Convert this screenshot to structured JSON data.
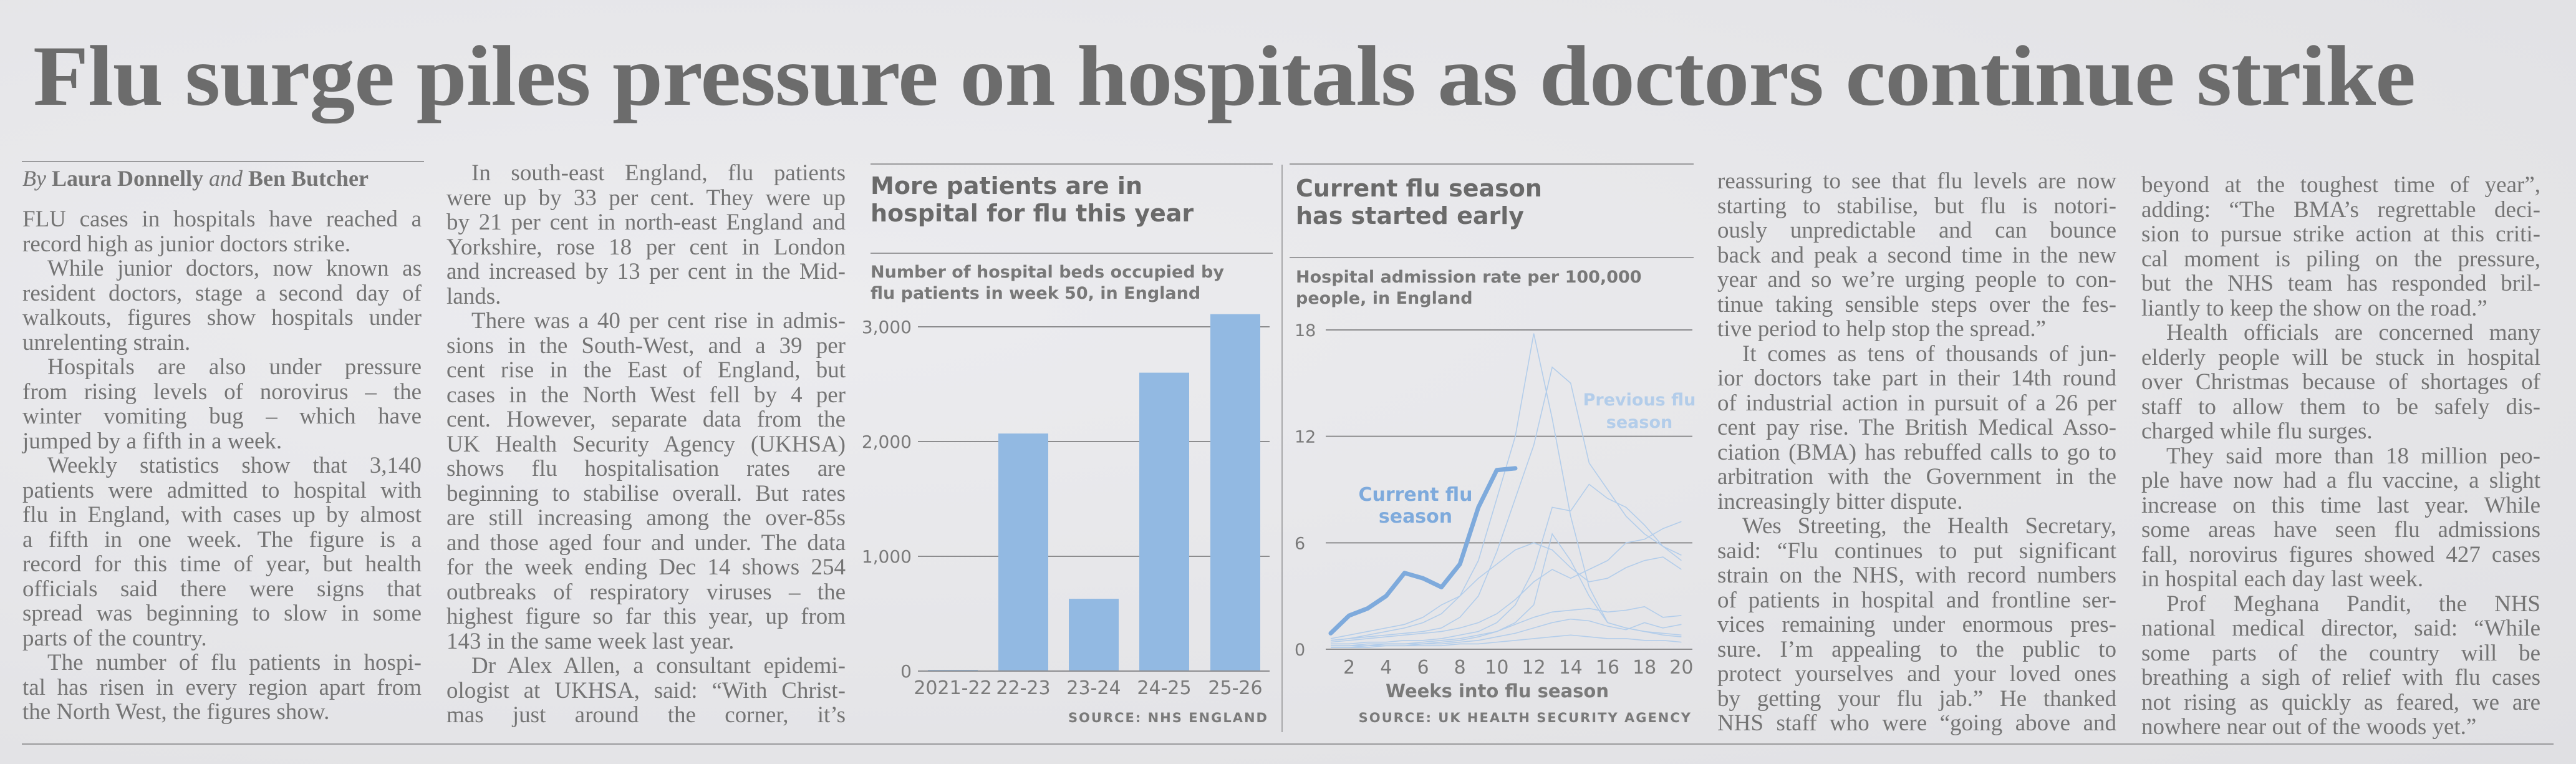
{
  "headline": "Flu surge piles pressure on hospitals as doctors continue strike",
  "byline": {
    "by": "By",
    "author1": "Laura Donnelly",
    "and": "and",
    "author2": "Ben Butcher"
  },
  "columns": [
    {
      "paragraphs": [
        {
          "indent": false,
          "lines": [
            "FLU cases in hospitals have reached a",
            "record high as junior doctors strike."
          ]
        },
        {
          "indent": true,
          "lines": [
            "While junior doctors, now known as",
            "resident doctors, stage a second day of",
            "walkouts, figures show hospitals under",
            "unrelenting strain."
          ]
        },
        {
          "indent": true,
          "lines": [
            "Hospitals are also under pressure",
            "from rising levels of norovirus – the",
            "winter vomiting bug – which have",
            "jumped by a fifth in a week."
          ]
        },
        {
          "indent": true,
          "lines": [
            "Weekly statistics show that 3,140",
            "patients were admitted to hospital with",
            "flu in England, with cases up by almost",
            "a fifth in one week. The figure is a",
            "record for this time of year, but health",
            "officials said there were signs that",
            "spread was beginning to slow in some",
            "parts of the country."
          ]
        },
        {
          "indent": true,
          "lines": [
            "The number of flu patients in hospi-",
            "tal has risen in every region apart from",
            "the North West, the figures show."
          ]
        }
      ]
    },
    {
      "paragraphs": [
        {
          "indent": true,
          "lines": [
            "In south-east England, flu patients",
            "were up by 33 per cent. They were up",
            "by 21 per cent in north-east England and",
            "Yorkshire, rose 18 per cent in London",
            "and increased by 13 per cent in the Mid-",
            "lands."
          ]
        },
        {
          "indent": true,
          "lines": [
            "There was a 40 per cent rise in admis-",
            "sions in the South-West, and a 39 per",
            "cent rise in the East of England, but",
            "cases in the North West fell by 4 per",
            "cent. However, separate data from the",
            "UK Health Security Agency (UKHSA)",
            "shows flu hospitalisation rates are",
            "beginning to stabilise overall. But rates",
            "are still increasing among the over-85s",
            "and those aged four and under. The data",
            "for the week ending Dec 14 shows 254",
            "outbreaks of respiratory viruses – the",
            "highest figure so far this year, up from",
            "143 in the same week last year."
          ]
        },
        {
          "indent": true,
          "lines": [
            "Dr Alex Allen, a consultant epidemi-",
            "ologist at UKHSA, said: “With Christ-",
            "mas just around the corner, it’s"
          ],
          "continues": true
        }
      ]
    },
    {
      "paragraphs": [
        {
          "indent": false,
          "lines": [
            "reassuring to see that flu levels are now",
            "starting to stabilise, but flu is notori-",
            "ously unpredictable and can bounce",
            "back and peak a second time in the new",
            "year and so we’re urging people to con-",
            "tinue taking sensible steps over the fes-",
            "tive period to help stop the spread.”"
          ]
        },
        {
          "indent": true,
          "lines": [
            "It comes as tens of thousands of jun-",
            "ior doctors take part in their 14th round",
            "of industrial action in pursuit of a 26 per",
            "cent pay rise. The British Medical Asso-",
            "ciation (BMA) has rebuffed calls to go to",
            "arbitration with the Government in the",
            "increasingly bitter dispute."
          ]
        },
        {
          "indent": true,
          "lines": [
            "Wes Streeting, the Health Secretary,",
            "said: “Flu continues to put significant",
            "strain on the NHS, with record numbers",
            "of patients in hospital and frontline ser-",
            "vices remaining under enormous pres-",
            "sure. I’m appealing to the public to",
            "protect yourselves and your loved ones",
            "by getting your flu jab.” He thanked",
            "NHS staff who were “going above and"
          ],
          "continues": true
        }
      ]
    },
    {
      "paragraphs": [
        {
          "indent": false,
          "lines": [
            "beyond at the toughest time of year”,",
            "adding: “The BMA’s regrettable deci-",
            "sion to pursue strike action at this criti-",
            "cal moment is piling on the pressure,",
            "but the NHS team has responded bril-",
            "liantly to keep the show on the road.”"
          ]
        },
        {
          "indent": true,
          "lines": [
            "Health officials are concerned many",
            "elderly people will be stuck in hospital",
            "over Christmas because of shortages of",
            "staff to allow them to be safely dis-",
            "charged while flu surges."
          ]
        },
        {
          "indent": true,
          "lines": [
            "They said more than 18 million peo-",
            "ple have now had a flu vaccine, a slight",
            "increase on this time last year. While",
            "some areas have seen flu admissions",
            "fall, norovirus figures showed 427 cases",
            "in hospital each day last week."
          ]
        },
        {
          "indent": true,
          "lines": [
            "Prof Meghana Pandit, the NHS",
            "national medical director, said: “While",
            "some parts of the country will be",
            "breathing a sigh of relief with flu cases",
            "not rising as quickly as feared, we are",
            "nowhere near out of the woods yet.”"
          ]
        }
      ]
    }
  ],
  "chart_data": [
    {
      "type": "bar",
      "title": "More patients are in hospital for flu this year",
      "subtitle": "Number of hospital beds occupied by flu patients in week 50, in England",
      "categories": [
        "2021-22",
        "22-23",
        "23-24",
        "24-25",
        "25-26"
      ],
      "values": [
        10,
        2070,
        630,
        2600,
        3110
      ],
      "ylim": [
        0,
        3000
      ],
      "yticks": [
        "0",
        "1,000",
        "2,000",
        "3,000"
      ],
      "ytick_values": [
        0,
        1000,
        2000,
        3000
      ],
      "grid": true,
      "source": "SOURCE: NHS ENGLAND",
      "bar_color": "#92b9e2"
    },
    {
      "type": "line",
      "title": "Current flu season has started early",
      "subtitle": "Hospital admission rate per 100,000 people, in England",
      "xlabel": "Weeks into flu season",
      "xticks": [
        "2",
        "4",
        "6",
        "8",
        "10",
        "12",
        "14",
        "16",
        "18",
        "20"
      ],
      "xtick_values": [
        2,
        4,
        6,
        8,
        10,
        12,
        14,
        16,
        18,
        20
      ],
      "yticks": [
        "0",
        "6",
        "12",
        "18"
      ],
      "ytick_values": [
        0,
        6,
        12,
        18
      ],
      "xlim": [
        1,
        20
      ],
      "ylim": [
        0,
        18
      ],
      "grid": true,
      "source": "SOURCE: UK HEALTH SECURITY AGENCY",
      "current": {
        "label": "Current flu season",
        "label_lines": [
          "Current flu",
          "season"
        ],
        "color": "#7eaadc",
        "weeks": [
          1,
          2,
          3,
          4,
          5,
          6,
          7,
          8,
          9,
          10,
          11
        ],
        "values": [
          0.9,
          1.9,
          2.3,
          3.0,
          4.3,
          4.0,
          3.5,
          4.8,
          8.0,
          10.1,
          10.2
        ]
      },
      "previous": {
        "label": "Previous flu season",
        "label_lines": [
          "Previous flu",
          "season"
        ],
        "color": "#b3cdea",
        "weeks": [
          1,
          2,
          3,
          4,
          5,
          6,
          7,
          8,
          9,
          10,
          11,
          12,
          13,
          14,
          15,
          16,
          17,
          18,
          19,
          20
        ],
        "seasons": [
          [
            0.5,
            0.6,
            0.8,
            1.0,
            1.2,
            1.5,
            2.0,
            3.0,
            5.0,
            8.5,
            12.0,
            17.8,
            13.0,
            7.5,
            3.5,
            1.5,
            1.2,
            1.0,
            0.8,
            0.7
          ],
          [
            0.5,
            0.6,
            0.7,
            0.8,
            0.9,
            1.0,
            1.2,
            1.8,
            3.0,
            5.5,
            8.5,
            11.5,
            15.9,
            15.0,
            10.5,
            9.0,
            7.5,
            6.5,
            5.8,
            5.0
          ],
          [
            0.3,
            0.3,
            0.4,
            0.4,
            0.5,
            0.5,
            0.6,
            0.8,
            1.0,
            1.5,
            2.5,
            4.5,
            8.0,
            7.8,
            9.3,
            8.5,
            8.0,
            7.0,
            5.8,
            5.3
          ],
          [
            0.6,
            0.8,
            1.0,
            1.2,
            1.4,
            1.8,
            2.5,
            3.0,
            4.0,
            4.8,
            5.6,
            6.0,
            5.6,
            4.6,
            3.8,
            4.0,
            4.6,
            5.0,
            5.2,
            4.5
          ],
          [
            0.4,
            0.5,
            0.6,
            0.7,
            0.8,
            0.9,
            1.0,
            1.2,
            1.5,
            2.0,
            2.8,
            3.8,
            4.5,
            4.0,
            4.5,
            5.0,
            6.0,
            6.2,
            6.8,
            7.2
          ],
          [
            0.2,
            0.2,
            0.3,
            0.3,
            0.3,
            0.4,
            0.5,
            0.6,
            0.8,
            1.0,
            1.5,
            2.5,
            6.5,
            5.0,
            3.0,
            1.5,
            1.2,
            1.0,
            0.9,
            0.8
          ],
          [
            0.2,
            0.2,
            0.2,
            0.3,
            0.3,
            0.3,
            0.4,
            0.5,
            0.7,
            1.0,
            1.4,
            1.8,
            2.1,
            2.2,
            2.3,
            2.1,
            2.2,
            2.4,
            1.8,
            1.9
          ],
          [
            0.1,
            0.1,
            0.2,
            0.2,
            0.2,
            0.3,
            0.3,
            0.4,
            0.5,
            0.7,
            0.9,
            1.2,
            1.5,
            1.7,
            1.6,
            1.3,
            1.1,
            1.5,
            1.2,
            1.4
          ],
          [
            0.1,
            0.1,
            0.1,
            0.2,
            0.2,
            0.2,
            0.2,
            0.3,
            0.3,
            0.4,
            0.5,
            0.6,
            0.7,
            0.8,
            0.7,
            0.6,
            0.6,
            0.5,
            0.5,
            0.4
          ]
        ]
      }
    }
  ]
}
